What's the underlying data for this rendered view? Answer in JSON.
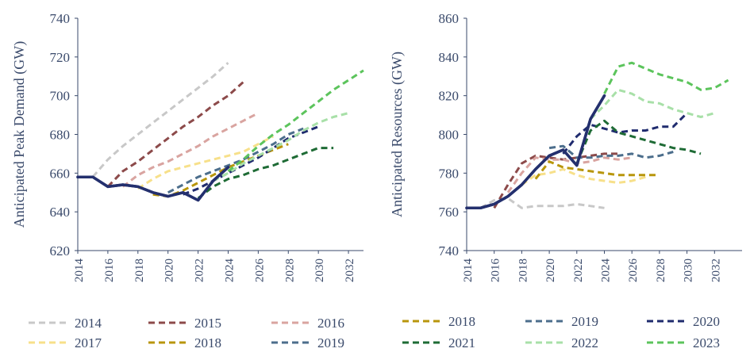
{
  "chart_data": [
    {
      "type": "line",
      "ylabel": "Anticipated Peak Demand (GW)",
      "xlim": [
        2014,
        2033
      ],
      "ylim": [
        620,
        740
      ],
      "yticks": [
        620,
        640,
        660,
        680,
        700,
        720,
        740
      ],
      "xticks": [
        2014,
        2016,
        2018,
        2020,
        2022,
        2024,
        2026,
        2028,
        2030,
        2032
      ],
      "grid": false,
      "legend": {
        "position": "bottom",
        "columns": 3
      },
      "series": [
        {
          "name": "2014",
          "color": "#c8c8c8",
          "dashed": true,
          "x": [
            2015,
            2016,
            2017,
            2018,
            2019,
            2020,
            2021,
            2022,
            2023,
            2024
          ],
          "y": [
            658,
            667,
            674,
            680,
            686,
            692,
            698,
            704,
            710,
            717
          ]
        },
        {
          "name": "2015",
          "color": "#8c4a4a",
          "dashed": true,
          "x": [
            2016,
            2017,
            2018,
            2019,
            2020,
            2021,
            2022,
            2023,
            2024,
            2025
          ],
          "y": [
            653,
            661,
            666,
            672,
            678,
            684,
            689,
            695,
            700,
            707
          ]
        },
        {
          "name": "2016",
          "color": "#d9a4a0",
          "dashed": true,
          "x": [
            2017,
            2018,
            2019,
            2020,
            2021,
            2022,
            2023,
            2024,
            2025,
            2026
          ],
          "y": [
            653,
            659,
            663,
            666,
            670,
            674,
            679,
            683,
            687,
            691
          ]
        },
        {
          "name": "2017",
          "color": "#f7e08a",
          "dashed": true,
          "x": [
            2018,
            2019,
            2020,
            2021,
            2022,
            2023,
            2024,
            2025,
            2026,
            2027
          ],
          "y": [
            652,
            657,
            661,
            663,
            665,
            667,
            669,
            671,
            675,
            679
          ]
        },
        {
          "name": "2018",
          "color": "#b8960c",
          "dashed": true,
          "x": [
            2019,
            2020,
            2021,
            2022,
            2023,
            2024,
            2025,
            2026,
            2027,
            2028
          ],
          "y": [
            649,
            648,
            651,
            655,
            659,
            663,
            666,
            669,
            672,
            675
          ]
        },
        {
          "name": "2019",
          "color": "#4c6e8c",
          "dashed": true,
          "x": [
            2020,
            2021,
            2022,
            2023,
            2024,
            2025,
            2026,
            2027,
            2028,
            2029
          ],
          "y": [
            650,
            654,
            658,
            661,
            664,
            667,
            671,
            675,
            680,
            683
          ]
        },
        {
          "name": "2020",
          "color": "#1f2b6e",
          "dashed": true,
          "x": [
            2021,
            2022,
            2023,
            2024,
            2025,
            2026,
            2027,
            2028,
            2029,
            2030
          ],
          "y": [
            649,
            652,
            656,
            660,
            664,
            668,
            673,
            678,
            681,
            684
          ]
        },
        {
          "name": "2021",
          "color": "#1e6b35",
          "dashed": true,
          "x": [
            2022,
            2023,
            2024,
            2025,
            2026,
            2027,
            2028,
            2029,
            2030,
            2031
          ],
          "y": [
            647,
            653,
            657,
            659,
            662,
            664,
            667,
            670,
            673,
            673
          ]
        },
        {
          "name": "2022",
          "color": "#a8e0a8",
          "dashed": true,
          "x": [
            2023,
            2024,
            2025,
            2026,
            2027,
            2028,
            2029,
            2030,
            2031,
            2032
          ],
          "y": [
            656,
            660,
            665,
            669,
            673,
            677,
            682,
            686,
            689,
            691
          ]
        },
        {
          "name": "2023",
          "color": "#5cc45c",
          "dashed": true,
          "x": [
            2024,
            2025,
            2026,
            2027,
            2028,
            2029,
            2030,
            2031,
            2032,
            2033
          ],
          "y": [
            661,
            667,
            674,
            680,
            685,
            691,
            697,
            703,
            708,
            713
          ]
        },
        {
          "name": "",
          "color": "#24306e",
          "dashed": false,
          "x": [
            2014,
            2015,
            2016,
            2017,
            2018,
            2019,
            2020,
            2021,
            2022,
            2023,
            2024
          ],
          "y": [
            658,
            658,
            653,
            654,
            653,
            650,
            648,
            650,
            646,
            656,
            663
          ]
        }
      ]
    },
    {
      "type": "line",
      "ylabel": "Anticipated Resources (GW)",
      "xlim": [
        2014,
        2034
      ],
      "ylim": [
        740,
        860
      ],
      "yticks": [
        740,
        760,
        780,
        800,
        820,
        840,
        860
      ],
      "xticks": [
        2014,
        2016,
        2018,
        2020,
        2022,
        2024,
        2026,
        2028,
        2030,
        2032
      ],
      "grid": false,
      "legend": {
        "position": "bottom",
        "columns": 3
      },
      "series": [
        {
          "name": "2014",
          "color": "#c8c8c8",
          "dashed": true,
          "x": [
            2015,
            2016,
            2017,
            2018,
            2019,
            2020,
            2021,
            2022,
            2023,
            2024
          ],
          "y": [
            762,
            766,
            767,
            762,
            763,
            763,
            763,
            764,
            763,
            762
          ]
        },
        {
          "name": "2015",
          "color": "#8c4a4a",
          "dashed": true,
          "x": [
            2016,
            2017,
            2018,
            2019,
            2020,
            2021,
            2022,
            2023,
            2024,
            2025
          ],
          "y": [
            762,
            774,
            785,
            789,
            788,
            787,
            788,
            789,
            790,
            790
          ]
        },
        {
          "name": "2016",
          "color": "#d9a4a0",
          "dashed": true,
          "x": [
            2017,
            2018,
            2019,
            2020,
            2021,
            2022,
            2023,
            2024,
            2025,
            2026
          ],
          "y": [
            770,
            780,
            788,
            787,
            787,
            785,
            786,
            788,
            787,
            788
          ]
        },
        {
          "name": "2017",
          "color": "#f7e08a",
          "dashed": true,
          "x": [
            2018,
            2019,
            2020,
            2021,
            2022,
            2023,
            2024,
            2025,
            2026,
            2027
          ],
          "y": [
            774,
            779,
            780,
            782,
            779,
            777,
            776,
            775,
            776,
            778
          ]
        },
        {
          "name": "2018",
          "color": "#b8960c",
          "dashed": true,
          "x": [
            2019,
            2020,
            2021,
            2022,
            2023,
            2024,
            2025,
            2026,
            2027,
            2028
          ],
          "y": [
            777,
            786,
            783,
            782,
            781,
            780,
            779,
            779,
            779,
            779
          ]
        },
        {
          "name": "2019",
          "color": "#4c6e8c",
          "dashed": true,
          "x": [
            2020,
            2021,
            2022,
            2023,
            2024,
            2025,
            2026,
            2027,
            2028,
            2029
          ],
          "y": [
            793,
            794,
            788,
            788,
            789,
            789,
            790,
            788,
            789,
            791
          ]
        },
        {
          "name": "2020",
          "color": "#1f2b6e",
          "dashed": true,
          "x": [
            2021,
            2022,
            2023,
            2024,
            2025,
            2026,
            2027,
            2028,
            2029,
            2030
          ],
          "y": [
            790,
            799,
            805,
            803,
            801,
            802,
            802,
            804,
            804,
            811
          ]
        },
        {
          "name": "2021",
          "color": "#1e6b35",
          "dashed": true,
          "x": [
            2022,
            2023,
            2024,
            2025,
            2026,
            2027,
            2028,
            2029,
            2030,
            2031
          ],
          "y": [
            785,
            802,
            807,
            801,
            799,
            797,
            795,
            793,
            792,
            790
          ]
        },
        {
          "name": "2022",
          "color": "#a8e0a8",
          "dashed": true,
          "x": [
            2023,
            2024,
            2025,
            2026,
            2027,
            2028,
            2029,
            2030,
            2031,
            2032
          ],
          "y": [
            808,
            815,
            823,
            821,
            817,
            816,
            813,
            811,
            809,
            811
          ]
        },
        {
          "name": "2023",
          "color": "#5cc45c",
          "dashed": true,
          "x": [
            2024,
            2025,
            2026,
            2027,
            2028,
            2029,
            2030,
            2031,
            2032,
            2033
          ],
          "y": [
            821,
            835,
            837,
            834,
            831,
            829,
            827,
            823,
            824,
            828
          ]
        },
        {
          "name": "",
          "color": "#24306e",
          "dashed": false,
          "x": [
            2014,
            2015,
            2016,
            2017,
            2018,
            2019,
            2020,
            2021,
            2022,
            2023,
            2024
          ],
          "y": [
            762,
            762,
            764,
            768,
            774,
            782,
            789,
            792,
            784,
            808,
            820
          ]
        }
      ]
    }
  ],
  "legends": [
    [
      "2014",
      "2015",
      "2016",
      "2017",
      "2018",
      "2019"
    ],
    [
      "2018",
      "2019",
      "2020",
      "2021",
      "2022",
      "2023"
    ]
  ]
}
